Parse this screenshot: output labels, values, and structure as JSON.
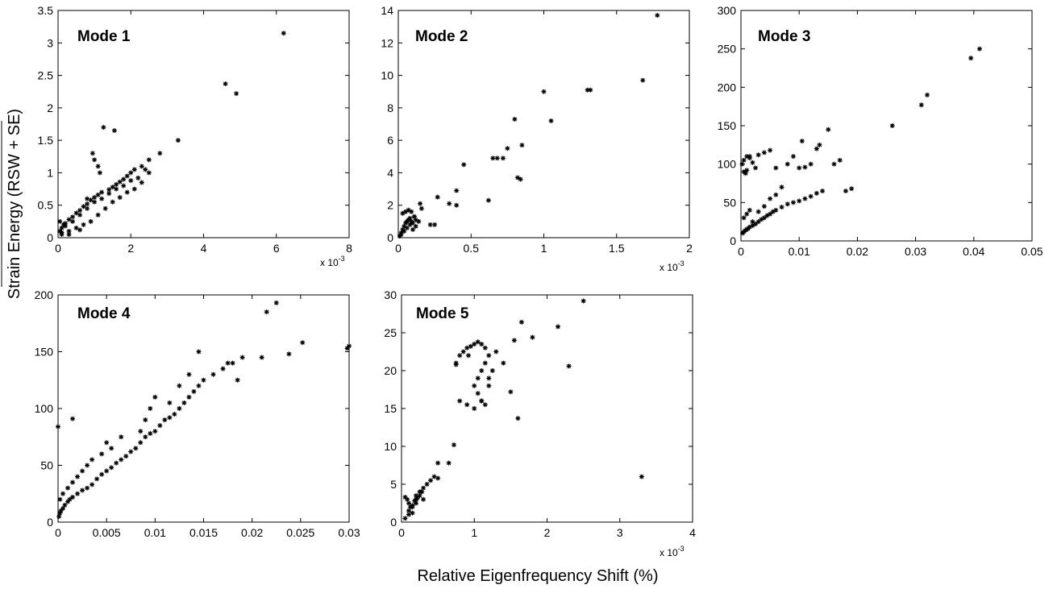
{
  "figure": {
    "ylabel": "Strain Energy (RSW + SE)",
    "xlabel": "Relative Eigenfrequency Shift (%)"
  },
  "chart_data": [
    {
      "type": "scatter",
      "title": "Mode 1",
      "xlim": [
        0,
        8
      ],
      "ylim": [
        0,
        3.5
      ],
      "x_multiplier": "x 10",
      "x_exponent": "-3",
      "xticks": [
        "0",
        "2",
        "4",
        "6",
        "8"
      ],
      "yticks": [
        "0",
        "0.5",
        "1",
        "1.5",
        "2",
        "2.5",
        "3",
        "3.5"
      ],
      "xticks_v": [
        0,
        2,
        4,
        6,
        8
      ],
      "yticks_v": [
        0,
        0.5,
        1,
        1.5,
        2,
        2.5,
        3,
        3.5
      ],
      "series": [
        {
          "marker": "*",
          "color": "#000000",
          "x": [
            0.05,
            0.1,
            0.15,
            0.2,
            0.3,
            0.4,
            0.5,
            0.6,
            0.7,
            0.8,
            0.9,
            1.0,
            1.1,
            1.2,
            1.4,
            1.5,
            1.6,
            1.7,
            1.8,
            1.9,
            2.0,
            2.1,
            2.3,
            2.5,
            2.8,
            3.3,
            0.1,
            0.3,
            0.5,
            0.7,
            0.9,
            1.1,
            1.3,
            1.5,
            1.7,
            1.9,
            2.1,
            2.3,
            2.5,
            0.2,
            0.4,
            0.6,
            0.8,
            1.0,
            1.2,
            1.4,
            1.6,
            1.8,
            2.0,
            2.2,
            2.4,
            0.95,
            1.0,
            1.1,
            1.15,
            1.25,
            1.55,
            4.6,
            4.9,
            6.2,
            0.05,
            0.1,
            0.3,
            0.6,
            0.8
          ],
          "y": [
            0.1,
            0.15,
            0.2,
            0.22,
            0.28,
            0.32,
            0.38,
            0.42,
            0.48,
            0.52,
            0.58,
            0.62,
            0.66,
            0.7,
            0.74,
            0.78,
            0.82,
            0.86,
            0.9,
            0.95,
            1.0,
            1.05,
            1.1,
            1.2,
            1.3,
            1.5,
            0.05,
            0.1,
            0.15,
            0.2,
            0.25,
            0.35,
            0.45,
            0.55,
            0.62,
            0.7,
            0.75,
            0.85,
            1.0,
            0.18,
            0.25,
            0.35,
            0.45,
            0.55,
            0.6,
            0.68,
            0.75,
            0.8,
            0.88,
            0.92,
            1.05,
            1.3,
            1.2,
            1.1,
            1.0,
            1.7,
            1.65,
            2.37,
            2.22,
            3.15,
            0.25,
            0.08,
            0.05,
            0.12,
            0.6
          ]
        }
      ]
    },
    {
      "type": "scatter",
      "title": "Mode 2",
      "xlim": [
        0,
        2
      ],
      "ylim": [
        0,
        14
      ],
      "x_multiplier": "x 10",
      "x_exponent": "-3",
      "xticks": [
        "0",
        "0.5",
        "1",
        "1.5",
        "2"
      ],
      "yticks": [
        "0",
        "2",
        "4",
        "6",
        "8",
        "10",
        "12",
        "14"
      ],
      "xticks_v": [
        0,
        0.5,
        1,
        1.5,
        2
      ],
      "yticks_v": [
        0,
        2,
        4,
        6,
        8,
        10,
        12,
        14
      ],
      "series": [
        {
          "marker": "*",
          "color": "#000000",
          "x": [
            0.01,
            0.02,
            0.03,
            0.04,
            0.05,
            0.06,
            0.07,
            0.08,
            0.09,
            0.1,
            0.11,
            0.12,
            0.03,
            0.05,
            0.07,
            0.09,
            0.11,
            0.02,
            0.04,
            0.06,
            0.08,
            0.1,
            0.12,
            0.14,
            0.16,
            0.15,
            0.22,
            0.25,
            0.27,
            0.35,
            0.4,
            0.4,
            0.45,
            0.62,
            0.65,
            0.68,
            0.72,
            0.75,
            0.8,
            0.82,
            0.84,
            0.85,
            1.0,
            1.05,
            1.3,
            1.32,
            1.68,
            1.78
          ],
          "y": [
            0.1,
            0.3,
            0.5,
            0.7,
            0.9,
            1.0,
            1.1,
            1.2,
            1.0,
            0.9,
            1.3,
            1.1,
            1.5,
            1.6,
            1.7,
            1.6,
            1.3,
            0.2,
            0.4,
            0.6,
            0.8,
            0.5,
            0.7,
            1.0,
            1.8,
            2.1,
            0.8,
            0.8,
            2.5,
            2.1,
            2.9,
            2.0,
            4.5,
            2.3,
            4.9,
            4.9,
            4.9,
            5.5,
            7.3,
            3.7,
            3.6,
            5.7,
            9.0,
            7.2,
            9.1,
            9.1,
            9.7,
            13.7
          ]
        }
      ]
    },
    {
      "type": "scatter",
      "title": "Mode 3",
      "xlim": [
        0,
        0.05
      ],
      "ylim": [
        0,
        300
      ],
      "xticks": [
        "0",
        "0.01",
        "0.02",
        "0.03",
        "0.04",
        "0.05"
      ],
      "yticks": [
        "0",
        "50",
        "100",
        "150",
        "200",
        "250",
        "300"
      ],
      "xticks_v": [
        0,
        0.01,
        0.02,
        0.03,
        0.04,
        0.05
      ],
      "yticks_v": [
        0,
        50,
        100,
        150,
        200,
        250,
        300
      ],
      "series": [
        {
          "marker": "*",
          "color": "#000000",
          "x": [
            0.0003,
            0.0005,
            0.0008,
            0.001,
            0.0012,
            0.0015,
            0.002,
            0.0025,
            0.003,
            0.0035,
            0.004,
            0.0045,
            0.005,
            0.0055,
            0.006,
            0.007,
            0.008,
            0.009,
            0.01,
            0.011,
            0.012,
            0.013,
            0.0005,
            0.001,
            0.0015,
            0.002,
            0.003,
            0.004,
            0.005,
            0.006,
            0.007,
            0.0002,
            0.0005,
            0.001,
            0.0015,
            0.002,
            0.0025,
            0.0005,
            0.0008,
            0.001,
            0.0015,
            0.003,
            0.004,
            0.005,
            0.006,
            0.008,
            0.009,
            0.01,
            0.011,
            0.012,
            0.013,
            0.014,
            0.015,
            0.016,
            0.017,
            0.018,
            0.019,
            0.0105,
            0.0135,
            0.026,
            0.031,
            0.032,
            0.0395,
            0.041
          ],
          "y": [
            10,
            12,
            14,
            15,
            16,
            18,
            20,
            22,
            25,
            28,
            30,
            33,
            35,
            38,
            40,
            44,
            48,
            50,
            52,
            55,
            58,
            62,
            30,
            35,
            40,
            25,
            38,
            45,
            55,
            60,
            70,
            100,
            105,
            110,
            108,
            102,
            95,
            90,
            88,
            92,
            110,
            112,
            115,
            118,
            95,
            100,
            110,
            95,
            96,
            100,
            120,
            65,
            145,
            100,
            105,
            65,
            68,
            130,
            125,
            150,
            177,
            190,
            238,
            250
          ]
        }
      ]
    },
    {
      "type": "scatter",
      "title": "Mode 4",
      "xlim": [
        0,
        0.03
      ],
      "ylim": [
        0,
        200
      ],
      "xticks": [
        "0",
        "0.005",
        "0.01",
        "0.015",
        "0.02",
        "0.025",
        "0.03"
      ],
      "yticks": [
        "0",
        "50",
        "100",
        "150",
        "200"
      ],
      "xticks_v": [
        0,
        0.005,
        0.01,
        0.015,
        0.02,
        0.025,
        0.03
      ],
      "yticks_v": [
        0,
        50,
        100,
        150,
        200
      ],
      "series": [
        {
          "marker": "*",
          "color": "#000000",
          "x": [
            0.0001,
            0.0002,
            0.0003,
            0.0005,
            0.0007,
            0.001,
            0.0012,
            0.0015,
            0.002,
            0.0025,
            0.003,
            0.0035,
            0.004,
            0.0045,
            0.005,
            0.0055,
            0.006,
            0.0065,
            0.007,
            0.0075,
            0.008,
            0.0085,
            0.009,
            0.0095,
            0.01,
            0.0105,
            0.011,
            0.0115,
            0.012,
            0.0125,
            0.013,
            0.0135,
            0.014,
            0.0145,
            0.015,
            0.016,
            0.017,
            0.018,
            0.019,
            0.0002,
            0.0005,
            0.001,
            0.0015,
            0.002,
            0.0025,
            0.003,
            0.0035,
            0.0045,
            0.005,
            0.0055,
            0.0065,
            0.0085,
            0.009,
            0.0095,
            0.01,
            0.0115,
            0.0125,
            0.0135,
            0.0145,
            0.0175,
            0.0185,
            0.021,
            0.0215,
            0.0225,
            0.0238,
            0.0252,
            0.0298,
            0.03,
            0.0,
            0.0015
          ],
          "y": [
            5,
            8,
            10,
            12,
            15,
            18,
            20,
            22,
            25,
            28,
            30,
            33,
            38,
            42,
            45,
            48,
            52,
            55,
            58,
            62,
            65,
            70,
            75,
            78,
            80,
            85,
            90,
            92,
            95,
            100,
            105,
            110,
            115,
            120,
            125,
            130,
            135,
            140,
            145,
            20,
            25,
            30,
            35,
            40,
            45,
            50,
            55,
            60,
            70,
            65,
            75,
            80,
            90,
            100,
            110,
            105,
            120,
            130,
            150,
            140,
            125,
            145,
            185,
            193,
            148,
            158,
            153,
            155,
            84,
            91
          ]
        }
      ]
    },
    {
      "type": "scatter",
      "title": "Mode 5",
      "xlim": [
        0,
        4
      ],
      "ylim": [
        0,
        30
      ],
      "x_multiplier": "x 10",
      "x_exponent": "-3",
      "xticks": [
        "0",
        "1",
        "2",
        "3",
        "4"
      ],
      "yticks": [
        "0",
        "5",
        "10",
        "15",
        "20",
        "25",
        "30"
      ],
      "xticks_v": [
        0,
        1,
        2,
        3,
        4
      ],
      "yticks_v": [
        0,
        5,
        10,
        15,
        20,
        25,
        30
      ],
      "series": [
        {
          "marker": "*",
          "color": "#000000",
          "x": [
            0.05,
            0.08,
            0.1,
            0.12,
            0.15,
            0.18,
            0.2,
            0.22,
            0.25,
            0.28,
            0.3,
            0.35,
            0.4,
            0.45,
            0.5,
            0.1,
            0.15,
            0.2,
            0.25,
            0.3,
            0.05,
            0.1,
            0.15,
            0.2,
            0.5,
            0.65,
            0.72,
            0.75,
            0.8,
            0.85,
            0.9,
            0.95,
            1.0,
            1.05,
            1.1,
            1.15,
            1.2,
            1.15,
            1.1,
            1.05,
            1.0,
            1.05,
            1.1,
            1.15,
            1.2,
            1.25,
            0.75,
            0.8,
            0.9,
            1.0,
            1.1,
            1.2,
            1.3,
            1.4,
            1.5,
            1.55,
            1.6,
            1.65,
            1.8,
            2.15,
            2.3,
            2.5,
            3.3,
            0.92
          ],
          "y": [
            3.3,
            3.0,
            2.5,
            2.0,
            2.2,
            2.8,
            3.0,
            3.2,
            3.5,
            4.0,
            4.5,
            5.0,
            5.5,
            6.0,
            5.8,
            1.5,
            2.0,
            2.5,
            4.0,
            3.0,
            0.5,
            1.0,
            1.2,
            3.5,
            7.8,
            7.8,
            10.2,
            21,
            22,
            22.5,
            23,
            23.2,
            23.5,
            23.8,
            23.5,
            23,
            22,
            21,
            20,
            19,
            18,
            17,
            16,
            15.5,
            18,
            20,
            20.8,
            16,
            15.5,
            15,
            16,
            19,
            22.5,
            21,
            17.2,
            24,
            13.7,
            26.4,
            24.4,
            25.8,
            20.6,
            29.2,
            6,
            22
          ]
        }
      ]
    }
  ]
}
